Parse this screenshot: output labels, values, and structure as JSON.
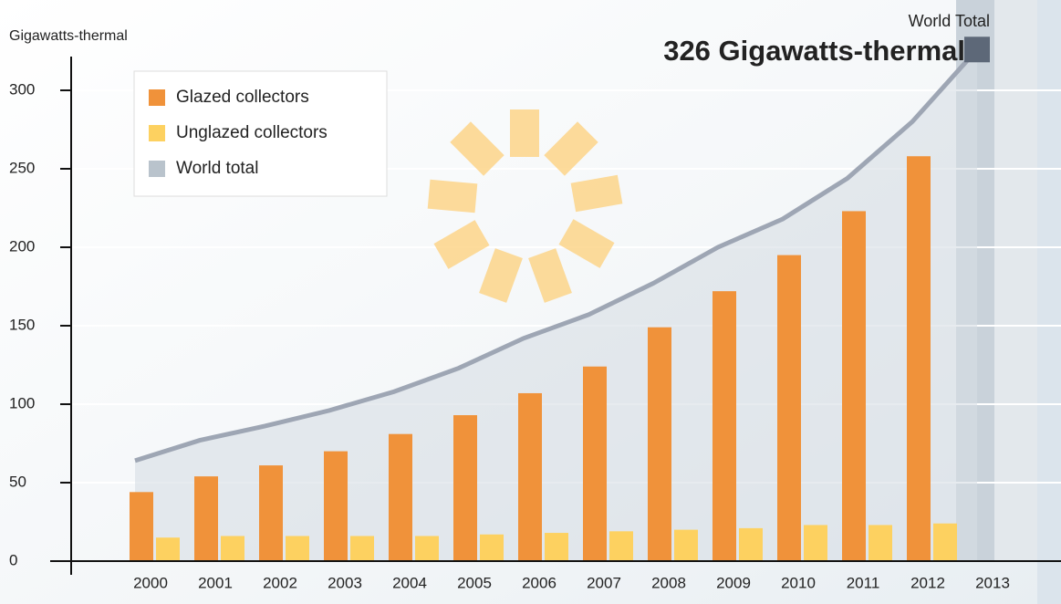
{
  "chart_data": {
    "type": "bar",
    "y_label": "Gigawatts-thermal",
    "annotation_title": "World Total",
    "annotation": "326 Gigawatts-thermal",
    "categories": [
      "2000",
      "2001",
      "2002",
      "2003",
      "2004",
      "2005",
      "2006",
      "2007",
      "2008",
      "2009",
      "2010",
      "2011",
      "2012",
      "2013"
    ],
    "series": [
      {
        "name": "Glazed collectors",
        "color": "#f0923a",
        "type": "bar",
        "values": [
          44,
          54,
          61,
          70,
          81,
          93,
          107,
          124,
          149,
          172,
          195,
          223,
          258,
          null
        ]
      },
      {
        "name": "Unglazed collectors",
        "color": "#fdd160",
        "type": "bar",
        "values": [
          15,
          16,
          16,
          16,
          16,
          17,
          18,
          19,
          20,
          21,
          23,
          23,
          24,
          null
        ]
      },
      {
        "name": "World total",
        "color": "#b9c3cc",
        "type": "line",
        "values": [
          64,
          77,
          86,
          96,
          108,
          123,
          142,
          157,
          177,
          200,
          218,
          244,
          280,
          326
        ]
      }
    ],
    "ylim": [
      0,
      320
    ],
    "yticks": [
      0,
      50,
      100,
      150,
      200,
      250,
      300
    ],
    "grid": true,
    "legend": "top-left"
  }
}
